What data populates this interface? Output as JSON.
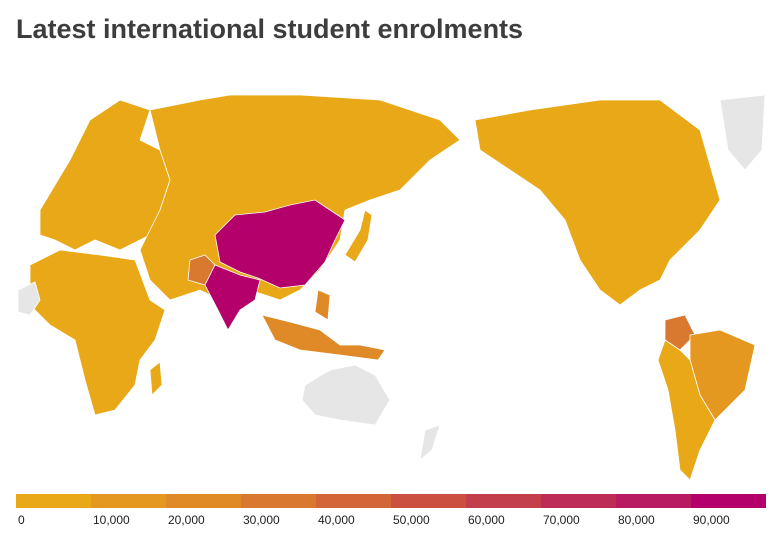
{
  "title": "Latest international student enrolments",
  "legend": {
    "xlim": [
      0,
      100000
    ],
    "colors": [
      "#e8a817",
      "#e4981f",
      "#df8a27",
      "#d9782f",
      "#d26637",
      "#cb503f",
      "#c43f4c",
      "#bd2c57",
      "#b81b61",
      "#b3006b"
    ],
    "ticks": [
      {
        "value": 0,
        "label": "0"
      },
      {
        "value": 10000,
        "label": "10,000"
      },
      {
        "value": 20000,
        "label": "20,000"
      },
      {
        "value": 30000,
        "label": "30,000"
      },
      {
        "value": 40000,
        "label": "40,000"
      },
      {
        "value": 50000,
        "label": "50,000"
      },
      {
        "value": 60000,
        "label": "60,000"
      },
      {
        "value": 70000,
        "label": "70,000"
      },
      {
        "value": 80000,
        "label": "80,000"
      },
      {
        "value": 90000,
        "label": "90,000"
      }
    ]
  }
}
